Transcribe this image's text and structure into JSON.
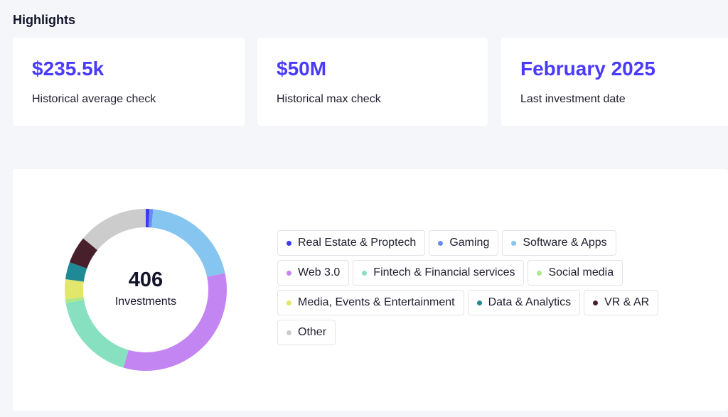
{
  "highlights": {
    "title": "Highlights",
    "cards": [
      {
        "value": "$235.5k",
        "label": "Historical average check"
      },
      {
        "value": "$50M",
        "label": "Historical max check"
      },
      {
        "value": "February 2025",
        "label": "Last investment date"
      }
    ]
  },
  "chart_data": {
    "type": "pie",
    "title": "",
    "total": "406",
    "total_label": "Investments",
    "categories": [
      "Real Estate & Proptech",
      "Gaming",
      "Software & Apps",
      "Web 3.0",
      "Fintech & Financial services",
      "Social media",
      "Media, Events & Entertainment",
      "Data & Analytics",
      "VR & AR",
      "Other"
    ],
    "values": [
      3,
      3,
      82,
      133,
      73,
      3,
      16,
      14,
      22,
      57
    ],
    "colors": [
      "#3b3bf5",
      "#6b8cf5",
      "#86c5f0",
      "#c385f2",
      "#87e0c0",
      "#aee88a",
      "#e2e66a",
      "#1f8a96",
      "#48202c",
      "#cccccc"
    ],
    "legend_position": "right"
  }
}
